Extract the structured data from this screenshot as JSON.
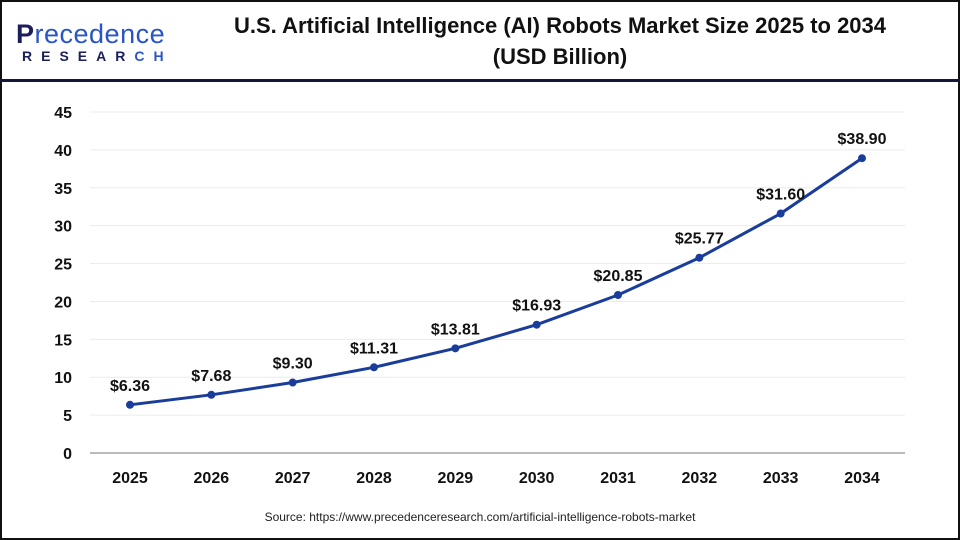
{
  "logo": {
    "text": "Precedence",
    "subtext": "RESEARCH"
  },
  "title_line1": "U.S. Artificial Intelligence (AI) Robots Market Size 2025 to 2034",
  "title_line2": "(USD Billion)",
  "source": "Source: https://www.precedenceresearch.com/artificial-intelligence-robots-market",
  "chart_data": {
    "type": "line",
    "title": "U.S. Artificial Intelligence (AI) Robots Market Size 2025 to 2034 (USD Billion)",
    "categories": [
      "2025",
      "2026",
      "2027",
      "2028",
      "2029",
      "2030",
      "2031",
      "2032",
      "2033",
      "2034"
    ],
    "values": [
      6.36,
      7.68,
      9.3,
      11.31,
      13.81,
      16.93,
      20.85,
      25.77,
      31.6,
      38.9
    ],
    "data_labels": [
      "$6.36",
      "$7.68",
      "$9.30",
      "$11.31",
      "$13.81",
      "$16.93",
      "$20.85",
      "$25.77",
      "$31.60",
      "$38.90"
    ],
    "ylim": [
      0,
      45
    ],
    "yticks": [
      0,
      5,
      10,
      15,
      20,
      25,
      30,
      35,
      40,
      45
    ],
    "grid": true,
    "line_color": "#1a3d9c"
  }
}
